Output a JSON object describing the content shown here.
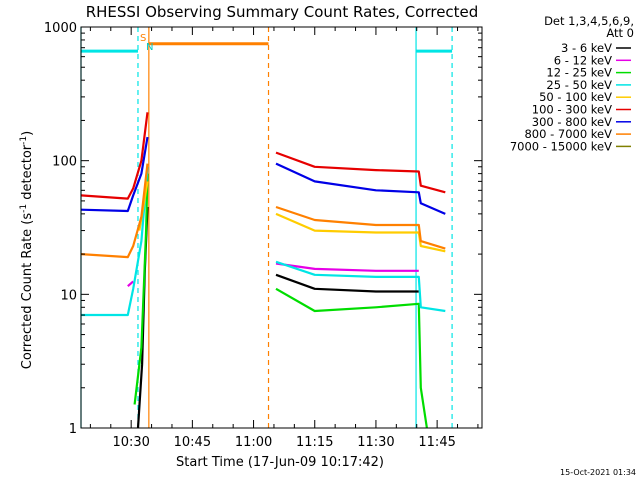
{
  "chart_data": {
    "type": "line",
    "title": "RHESSI Observing Summary Count Rates, Corrected",
    "xlabel": "Start Time (17-Jun-09 10:17:42)",
    "ylabel_main": "Corrected Count Rate (s",
    "ylabel_sup1": "-1",
    "ylabel_mid": " detector",
    "ylabel_sup2": "-1",
    "ylabel_end": ")",
    "y_scale": "log",
    "ylim": [
      1,
      1000
    ],
    "xlim": [
      "10:17:42",
      "11:56:00"
    ],
    "x_tick_labels": [
      "10:30",
      "10:45",
      "11:00",
      "11:15",
      "11:30",
      "11:45"
    ],
    "y_tick_labels": [
      "1",
      "10",
      "100",
      "1000"
    ],
    "legend_header": [
      "Det 1,3,4,5,6,9,",
      "Att 0"
    ],
    "legend_position": "right",
    "timestamp": "15-Oct-2021 01:34",
    "flags": {
      "s_label": "S",
      "n_label": "N"
    },
    "series": [
      {
        "name": "3 - 6 keV",
        "color": "#000000",
        "segments": [
          {
            "points": [
              [
                "10:31:40",
                1.0
              ],
              [
                "10:32:40",
                3.0
              ],
              [
                "10:33:20",
                15.0
              ],
              [
                "10:34:00",
                45.0
              ]
            ]
          },
          {
            "points": [
              [
                "11:05:30",
                14.0
              ],
              [
                "11:15:00",
                11.0
              ],
              [
                "11:30:00",
                10.5
              ],
              [
                "11:40:30",
                10.5
              ]
            ]
          }
        ]
      },
      {
        "name": "6 - 12 keV",
        "color": "#e600e6",
        "segments": [
          {
            "points": [
              [
                "10:29:10",
                11.5
              ],
              [
                "10:30:30",
                12.5
              ]
            ]
          },
          {
            "points": [
              [
                "11:05:30",
                17.0
              ],
              [
                "11:15:00",
                15.5
              ],
              [
                "11:30:00",
                15.0
              ],
              [
                "11:40:30",
                15.0
              ]
            ]
          }
        ]
      },
      {
        "name": "12 - 25 keV",
        "color": "#00dd00",
        "segments": [
          {
            "points": [
              [
                "10:30:50",
                1.5
              ],
              [
                "10:32:30",
                4.0
              ],
              [
                "10:33:40",
                30.0
              ],
              [
                "10:34:00",
                80.0
              ]
            ]
          },
          {
            "points": [
              [
                "11:05:30",
                11.0
              ],
              [
                "11:15:00",
                7.5
              ],
              [
                "11:30:00",
                8.0
              ],
              [
                "11:40:30",
                8.5
              ],
              [
                "11:41:00",
                2.0
              ],
              [
                "11:42:30",
                1.0
              ]
            ]
          }
        ]
      },
      {
        "name": "25 - 50 keV",
        "color": "#00e5e5",
        "segments": [
          {
            "points": [
              [
                "10:17:42",
                7.0
              ],
              [
                "10:29:10",
                7.0
              ],
              [
                "10:30:30",
                11.0
              ],
              [
                "10:32:30",
                25.0
              ],
              [
                "10:34:00",
                90.0
              ]
            ]
          },
          {
            "points": [
              [
                "11:05:30",
                17.5
              ],
              [
                "11:15:00",
                14.0
              ],
              [
                "11:30:00",
                13.5
              ],
              [
                "11:40:30",
                13.5
              ],
              [
                "11:41:00",
                8.0
              ],
              [
                "11:47:00",
                7.5
              ]
            ]
          }
        ]
      },
      {
        "name": "50 - 100 keV",
        "color": "#ffcc00",
        "segments": [
          {
            "points": [
              [
                "10:32:00",
                30.0
              ],
              [
                "10:34:00",
                70.0
              ]
            ]
          },
          {
            "points": [
              [
                "11:05:30",
                40.0
              ],
              [
                "11:15:00",
                30.0
              ],
              [
                "11:30:00",
                29.0
              ],
              [
                "11:40:30",
                29.0
              ],
              [
                "11:41:00",
                23.0
              ],
              [
                "11:47:00",
                21.0
              ]
            ]
          }
        ]
      },
      {
        "name": "100 - 300 keV",
        "color": "#e60000",
        "segments": [
          {
            "points": [
              [
                "10:17:42",
                55.0
              ],
              [
                "10:29:10",
                52.0
              ],
              [
                "10:30:30",
                62.0
              ],
              [
                "10:32:30",
                100.0
              ],
              [
                "10:34:00",
                230.0
              ]
            ]
          },
          {
            "points": [
              [
                "11:05:30",
                115.0
              ],
              [
                "11:15:00",
                90.0
              ],
              [
                "11:30:00",
                85.0
              ],
              [
                "11:40:30",
                83.0
              ],
              [
                "11:41:00",
                65.0
              ],
              [
                "11:47:00",
                58.0
              ]
            ]
          }
        ]
      },
      {
        "name": "300 - 800 keV",
        "color": "#0000e6",
        "segments": [
          {
            "points": [
              [
                "10:17:42",
                43.0
              ],
              [
                "10:29:10",
                42.0
              ],
              [
                "10:30:30",
                55.0
              ],
              [
                "10:32:30",
                80.0
              ],
              [
                "10:34:00",
                150.0
              ]
            ]
          },
          {
            "points": [
              [
                "11:05:30",
                95.0
              ],
              [
                "11:15:00",
                70.0
              ],
              [
                "11:30:00",
                60.0
              ],
              [
                "11:40:30",
                58.0
              ],
              [
                "11:41:00",
                48.0
              ],
              [
                "11:47:00",
                40.0
              ]
            ]
          }
        ]
      },
      {
        "name": "800 - 7000 keV",
        "color": "#ff8000",
        "segments": [
          {
            "points": [
              [
                "10:17:42",
                20.0
              ],
              [
                "10:29:10",
                19.0
              ],
              [
                "10:30:30",
                23.0
              ],
              [
                "10:32:30",
                38.0
              ],
              [
                "10:34:00",
                95.0
              ]
            ]
          },
          {
            "points": [
              [
                "11:05:30",
                45.0
              ],
              [
                "11:15:00",
                36.0
              ],
              [
                "11:30:00",
                33.0
              ],
              [
                "11:40:30",
                33.0
              ],
              [
                "11:41:00",
                25.0
              ],
              [
                "11:47:00",
                22.0
              ]
            ]
          }
        ]
      },
      {
        "name": "7000 - 15000 keV",
        "color": "#808000",
        "segments": []
      }
    ],
    "state_bars": [
      {
        "name": "saa-or-night-bar",
        "color": "#00e5e5",
        "value": 660,
        "ranges": [
          [
            "10:17:42",
            "10:31:40"
          ],
          [
            "11:39:50",
            "11:48:40"
          ]
        ]
      },
      {
        "name": "flare-bar",
        "color": "#ff8000",
        "value": 750,
        "ranges": [
          [
            "10:34:20",
            "11:03:40"
          ]
        ]
      }
    ],
    "vertical_markers": [
      {
        "name": "marker-cyan-1",
        "time": "10:31:40",
        "color": "#00e5e5",
        "dashed": true
      },
      {
        "name": "marker-orange-1",
        "time": "10:34:20",
        "color": "#ff8000",
        "dashed": false
      },
      {
        "name": "marker-orange-2",
        "time": "11:03:40",
        "color": "#ff8000",
        "dashed": true
      },
      {
        "name": "marker-cyan-2",
        "time": "11:39:50",
        "color": "#00e5e5",
        "dashed": false
      },
      {
        "name": "marker-cyan-3",
        "time": "11:48:40",
        "color": "#00e5e5",
        "dashed": true
      },
      {
        "name": "marker-cyan-left",
        "time": "10:17:42",
        "color": "#00e5e5",
        "dashed": false
      }
    ]
  }
}
